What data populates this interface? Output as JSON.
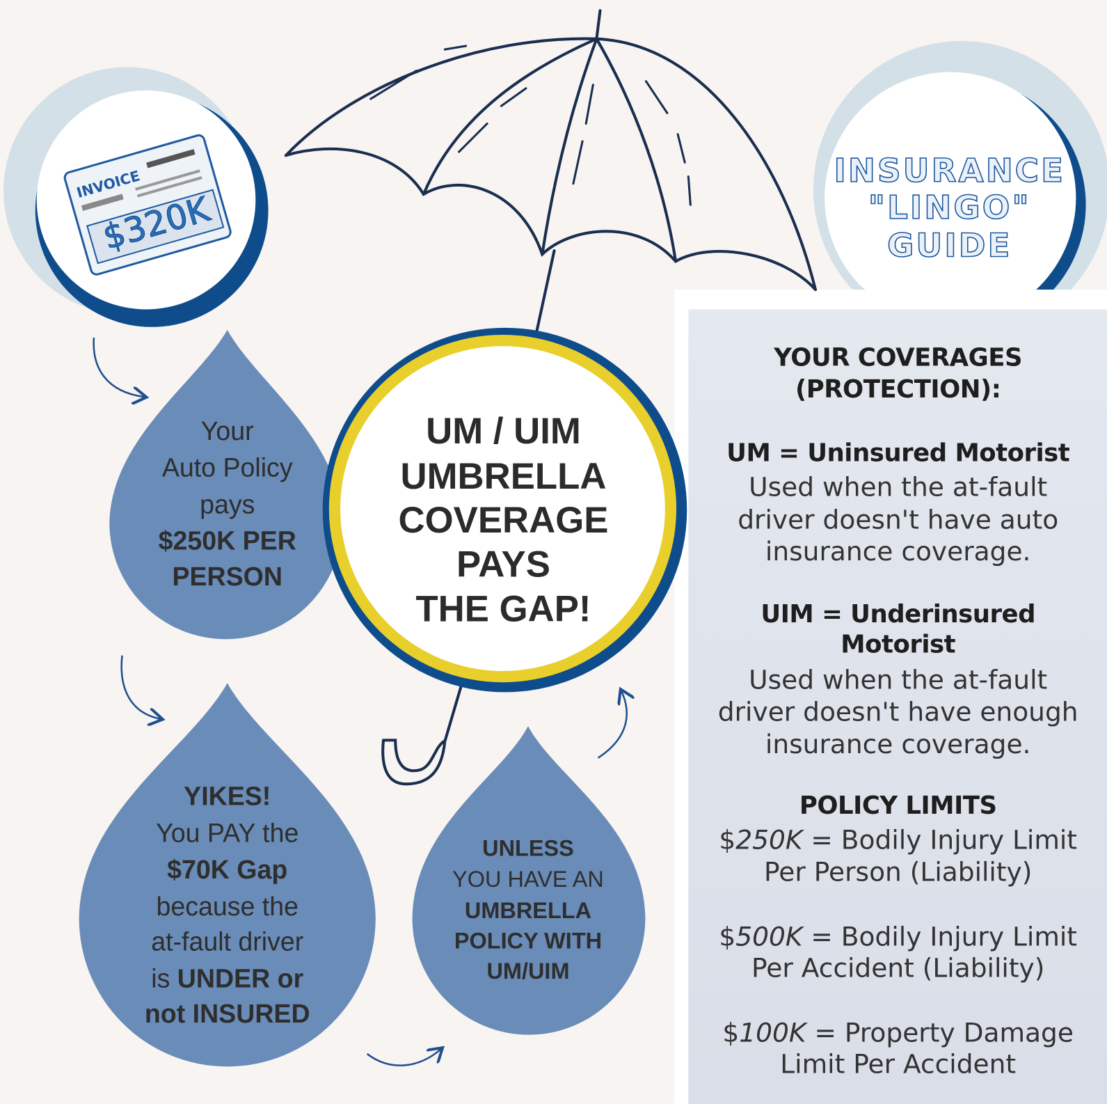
{
  "invoice": {
    "label": "INVOICE",
    "amount": "$320K"
  },
  "umbrella_circle": {
    "lines": [
      "UM / UIM",
      "UMBRELLA",
      "COVERAGE",
      "PAYS",
      "THE GAP!"
    ]
  },
  "badge": {
    "lines": [
      "INSURANCE",
      "\"LINGO\"",
      "GUIDE"
    ]
  },
  "drops": [
    {
      "lines": [
        "Your",
        "Auto Policy",
        "pays",
        [
          {
            "text": "$250K PER",
            "bold": true
          }
        ],
        [
          {
            "text": "PERSON",
            "bold": true
          }
        ]
      ]
    },
    {
      "lines": [
        [
          {
            "text": "YIKES!",
            "bold": true
          }
        ],
        "You PAY the",
        [
          {
            "text": "$70K Gap",
            "bold": true
          }
        ],
        "because the",
        "at-fault driver",
        [
          {
            "text": "is "
          },
          {
            "text": "UNDER or",
            "bold": true
          }
        ],
        [
          {
            "text": "not INSURED",
            "bold": true
          }
        ]
      ]
    },
    {
      "lines": [
        [
          {
            "text": "UNLESS",
            "bold": true
          }
        ],
        "YOU HAVE AN",
        [
          {
            "text": "UMBRELLA",
            "bold": true
          }
        ],
        [
          {
            "text": "POLICY WITH",
            "bold": true
          }
        ],
        [
          {
            "text": "UM/UIM",
            "bold": true
          }
        ]
      ]
    }
  ],
  "guide": {
    "heading": [
      "YOUR COVERAGES",
      "(PROTECTION):"
    ],
    "um_term": [
      "UM = Uninsured Motorist"
    ],
    "um_desc": [
      "Used when the at-fault",
      "driver doesn't have auto",
      "insurance coverage."
    ],
    "uim_term": [
      "UIM = Underinsured",
      "Motorist"
    ],
    "uim_desc": [
      "Used when the at-fault",
      "driver doesn't have enough",
      "insurance coverage."
    ],
    "limits_heading": [
      "POLICY LIMITS"
    ],
    "limits": [
      {
        "lines": [
          [
            {
              "text": "$"
            },
            {
              "text": "250K",
              "italic": true
            },
            {
              "text": " = Bodily Injury Limit"
            }
          ],
          "Per Person (Liability)"
        ]
      },
      {
        "lines": [
          [
            {
              "text": "$"
            },
            {
              "text": "500K",
              "italic": true
            },
            {
              "text": " = Bodily Injury Limit"
            }
          ],
          "Per Accident (Liability)"
        ]
      },
      {
        "lines": [
          [
            {
              "text": "$"
            },
            {
              "text": "100K",
              "italic": true
            },
            {
              "text": " = Property Damage"
            }
          ],
          "Limit Per Accident"
        ]
      }
    ]
  }
}
